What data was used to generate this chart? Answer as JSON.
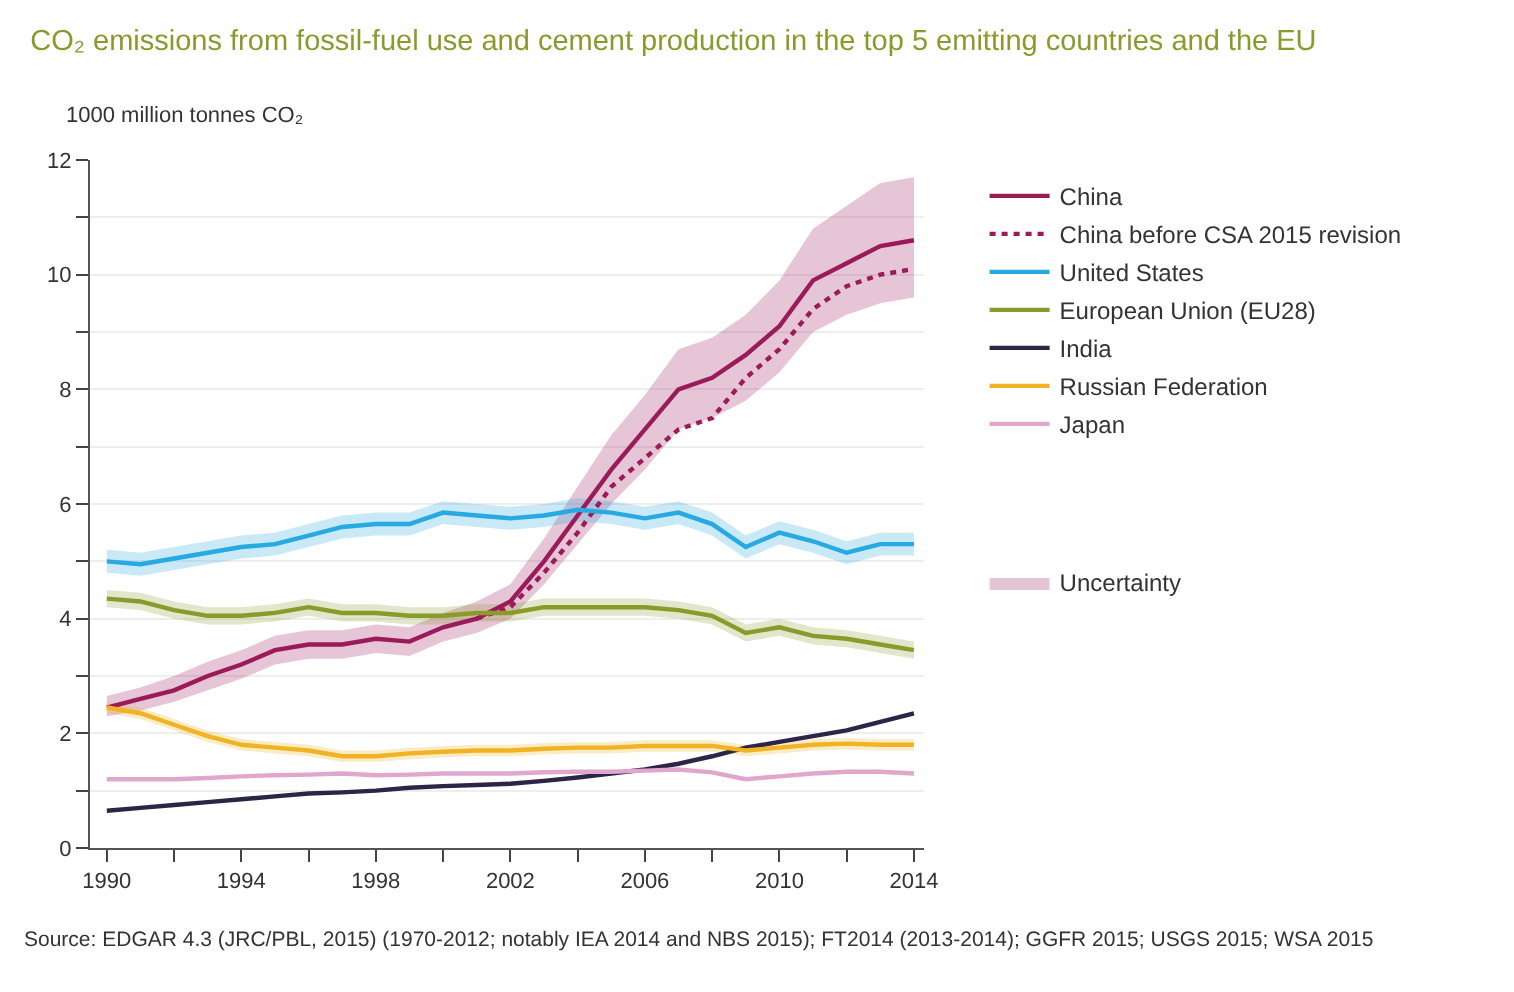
{
  "chart_data": {
    "type": "line",
    "title": "CO₂ emissions from fossil-fuel use and cement production in the top 5 emitting countries and the EU",
    "ylabel": "1000 million tonnes CO₂",
    "x": [
      1990,
      1991,
      1992,
      1993,
      1994,
      1995,
      1996,
      1997,
      1998,
      1999,
      2000,
      2001,
      2002,
      2003,
      2004,
      2005,
      2006,
      2007,
      2008,
      2009,
      2010,
      2011,
      2012,
      2013,
      2014
    ],
    "series": [
      {
        "name": "China",
        "color": "#9b1b5a",
        "line_style": "solid",
        "values": [
          2.45,
          2.6,
          2.75,
          3.0,
          3.2,
          3.45,
          3.55,
          3.55,
          3.65,
          3.6,
          3.85,
          4.0,
          4.3,
          5.0,
          5.8,
          6.6,
          7.3,
          8.0,
          8.2,
          8.6,
          9.1,
          9.9,
          10.2,
          10.5,
          10.6
        ],
        "lower": [
          2.3,
          2.4,
          2.55,
          2.75,
          2.95,
          3.2,
          3.3,
          3.3,
          3.4,
          3.35,
          3.6,
          3.75,
          4.0,
          4.6,
          5.3,
          6.0,
          6.6,
          7.3,
          7.5,
          7.8,
          8.3,
          9.0,
          9.3,
          9.5,
          9.6
        ],
        "upper": [
          2.65,
          2.8,
          3.0,
          3.25,
          3.45,
          3.7,
          3.8,
          3.8,
          3.9,
          3.85,
          4.1,
          4.3,
          4.6,
          5.4,
          6.3,
          7.2,
          7.9,
          8.7,
          8.9,
          9.3,
          9.9,
          10.8,
          11.2,
          11.6,
          11.7
        ]
      },
      {
        "name": "China before CSA 2015 revision",
        "color": "#9b1b5a",
        "line_style": "dotted",
        "values": [
          null,
          null,
          null,
          null,
          null,
          null,
          null,
          null,
          null,
          null,
          null,
          4.0,
          4.2,
          4.8,
          5.5,
          6.3,
          6.8,
          7.3,
          7.5,
          8.2,
          8.7,
          9.4,
          9.8,
          10.0,
          10.1
        ]
      },
      {
        "name": "United States",
        "color": "#27a9e1",
        "line_style": "solid",
        "values": [
          5.0,
          4.95,
          5.05,
          5.15,
          5.25,
          5.3,
          5.45,
          5.6,
          5.65,
          5.65,
          5.85,
          5.8,
          5.75,
          5.8,
          5.9,
          5.85,
          5.75,
          5.85,
          5.65,
          5.25,
          5.5,
          5.35,
          5.15,
          5.3,
          5.3
        ],
        "lower": [
          4.8,
          4.75,
          4.85,
          4.95,
          5.05,
          5.1,
          5.25,
          5.4,
          5.45,
          5.45,
          5.65,
          5.6,
          5.55,
          5.6,
          5.7,
          5.65,
          5.55,
          5.65,
          5.45,
          5.05,
          5.3,
          5.15,
          4.95,
          5.1,
          5.1
        ],
        "upper": [
          5.2,
          5.15,
          5.25,
          5.35,
          5.45,
          5.5,
          5.65,
          5.8,
          5.85,
          5.85,
          6.05,
          6.0,
          5.95,
          6.0,
          6.1,
          6.05,
          5.95,
          6.05,
          5.85,
          5.45,
          5.7,
          5.55,
          5.35,
          5.5,
          5.5
        ]
      },
      {
        "name": "European Union (EU28)",
        "color": "#8a9a2b",
        "line_style": "solid",
        "values": [
          4.35,
          4.3,
          4.15,
          4.05,
          4.05,
          4.1,
          4.2,
          4.1,
          4.1,
          4.05,
          4.05,
          4.1,
          4.1,
          4.2,
          4.2,
          4.2,
          4.2,
          4.15,
          4.05,
          3.75,
          3.85,
          3.7,
          3.65,
          3.55,
          3.45
        ],
        "lower": [
          4.2,
          4.15,
          4.0,
          3.9,
          3.9,
          3.95,
          4.05,
          3.95,
          3.95,
          3.9,
          3.9,
          3.95,
          3.95,
          4.05,
          4.05,
          4.05,
          4.05,
          4.0,
          3.9,
          3.6,
          3.7,
          3.55,
          3.5,
          3.4,
          3.3
        ],
        "upper": [
          4.5,
          4.45,
          4.3,
          4.2,
          4.2,
          4.25,
          4.35,
          4.25,
          4.25,
          4.2,
          4.2,
          4.25,
          4.25,
          4.35,
          4.35,
          4.35,
          4.35,
          4.3,
          4.2,
          3.9,
          4.0,
          3.85,
          3.8,
          3.7,
          3.6
        ]
      },
      {
        "name": "India",
        "color": "#2e2448",
        "line_style": "solid",
        "values": [
          0.65,
          0.7,
          0.75,
          0.8,
          0.85,
          0.9,
          0.95,
          0.97,
          1.0,
          1.05,
          1.08,
          1.1,
          1.12,
          1.17,
          1.23,
          1.3,
          1.37,
          1.47,
          1.6,
          1.75,
          1.85,
          1.95,
          2.05,
          2.2,
          2.35
        ]
      },
      {
        "name": "Russian Federation",
        "color": "#f0b323",
        "line_style": "solid",
        "values": [
          2.45,
          2.35,
          2.15,
          1.95,
          1.8,
          1.75,
          1.7,
          1.6,
          1.6,
          1.65,
          1.68,
          1.7,
          1.7,
          1.73,
          1.75,
          1.75,
          1.78,
          1.78,
          1.78,
          1.7,
          1.75,
          1.8,
          1.82,
          1.8,
          1.8
        ],
        "lower": [
          2.35,
          2.25,
          2.05,
          1.85,
          1.7,
          1.65,
          1.6,
          1.5,
          1.5,
          1.55,
          1.58,
          1.6,
          1.6,
          1.63,
          1.65,
          1.65,
          1.68,
          1.68,
          1.68,
          1.6,
          1.65,
          1.7,
          1.72,
          1.7,
          1.7
        ],
        "upper": [
          2.55,
          2.45,
          2.25,
          2.05,
          1.9,
          1.85,
          1.8,
          1.7,
          1.7,
          1.75,
          1.78,
          1.8,
          1.8,
          1.83,
          1.85,
          1.85,
          1.88,
          1.88,
          1.88,
          1.8,
          1.85,
          1.9,
          1.92,
          1.9,
          1.9
        ]
      },
      {
        "name": "Japan",
        "color": "#e0a6cc",
        "line_style": "solid",
        "values": [
          1.2,
          1.2,
          1.2,
          1.22,
          1.25,
          1.27,
          1.28,
          1.3,
          1.27,
          1.28,
          1.3,
          1.3,
          1.3,
          1.32,
          1.33,
          1.33,
          1.35,
          1.37,
          1.32,
          1.2,
          1.25,
          1.3,
          1.33,
          1.33,
          1.3
        ]
      }
    ],
    "xlim": [
      1989.5,
      2014.3
    ],
    "xticks": [
      1990,
      {
        "value": 1992,
        "label": null
      },
      1994,
      {
        "value": 1996,
        "label": null
      },
      1998,
      {
        "value": 2000,
        "label": null
      },
      2002,
      {
        "value": 2004,
        "label": null
      },
      2006,
      {
        "value": 2008,
        "label": null
      },
      2010,
      {
        "value": 2012,
        "label": null
      },
      2014
    ],
    "ylim": [
      0,
      12
    ],
    "yticks": [
      0,
      {
        "value": 1,
        "label": null
      },
      2,
      {
        "value": 3,
        "label": null
      },
      4,
      {
        "value": 5,
        "label": null
      },
      6,
      {
        "value": 7,
        "label": null
      },
      8,
      {
        "value": 9,
        "label": null
      },
      10,
      {
        "value": 11,
        "label": null
      },
      12
    ],
    "grid": "y",
    "legend": "right",
    "marker": "none",
    "annotations": [
      "Uncertainty",
      "Source: EDGAR 4.3 (JRC/PBL, 2015) (1970-2012; notably IEA 2014 and NBS 2015); FT2014 (2013-2014); GGFR 2015; USGS 2015; WSA 2015"
    ]
  }
}
